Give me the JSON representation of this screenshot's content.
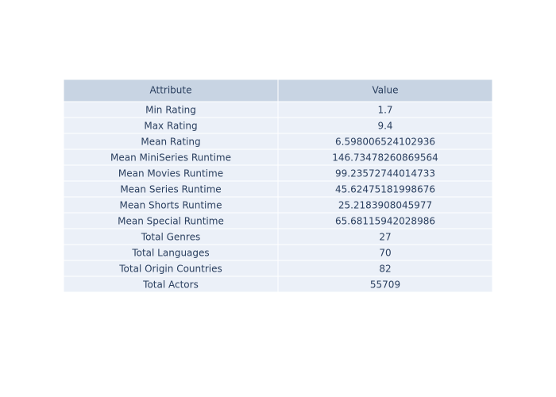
{
  "chart_data": {
    "type": "table",
    "columns": [
      "Attribute",
      "Value"
    ],
    "rows": [
      [
        "Min Rating",
        "1.7"
      ],
      [
        "Max Rating",
        "9.4"
      ],
      [
        "Mean Rating",
        "6.598006524102936"
      ],
      [
        "Mean MiniSeries Runtime",
        "146.73478260869564"
      ],
      [
        "Mean Movies Runtime",
        "99.23572744014733"
      ],
      [
        "Mean Series Runtime",
        "45.62475181998676"
      ],
      [
        "Mean Shorts Runtime",
        "25.2183908045977"
      ],
      [
        "Mean Special Runtime",
        "65.68115942028986"
      ],
      [
        "Total Genres",
        "27"
      ],
      [
        "Total Languages",
        "70"
      ],
      [
        "Total Origin Countries",
        "82"
      ],
      [
        "Total Actors",
        "55709"
      ]
    ],
    "colors": {
      "header_fill": "#c8d4e3",
      "cell_fill": "#ebf0f8",
      "line": "#ffffff",
      "text": "#2a3f5f"
    }
  }
}
